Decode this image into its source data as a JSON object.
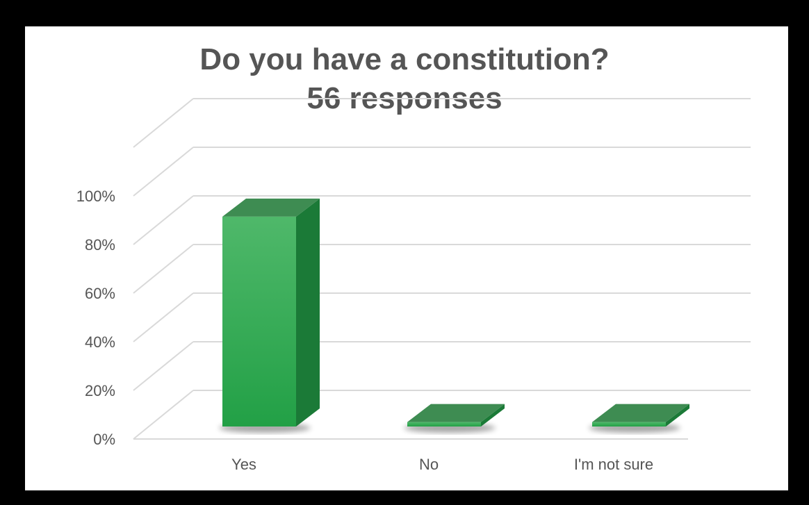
{
  "chart_data": {
    "type": "bar",
    "title": "Do you have a constitution?",
    "subtitle": "56 responses",
    "categories": [
      "Yes",
      "No",
      "I'm not sure"
    ],
    "values": [
      95,
      2,
      2
    ],
    "ylim": [
      0,
      100
    ],
    "yticks": [
      "0%",
      "20%",
      "40%",
      "60%",
      "80%",
      "100%"
    ],
    "grid": true,
    "legend": "none",
    "bar_color": "#2aa84a"
  }
}
